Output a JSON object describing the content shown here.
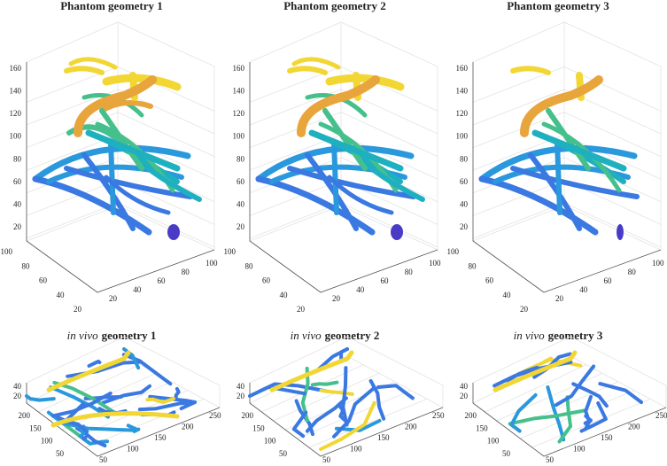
{
  "panels": [
    {
      "title": "Phantom geometry 1",
      "zticks": [
        20,
        40,
        60,
        80,
        100,
        120,
        140,
        160
      ],
      "yticks": [
        100,
        80,
        60,
        40,
        20
      ],
      "xticks": [
        20,
        40,
        60,
        80,
        100
      ]
    },
    {
      "title": "Phantom geometry 2",
      "zticks": [
        20,
        40,
        60,
        80,
        100,
        120,
        140,
        160
      ],
      "yticks": [
        100,
        80,
        60,
        40,
        20
      ],
      "xticks": [
        20,
        40,
        60,
        80,
        100
      ]
    },
    {
      "title": "Phantom geometry 3",
      "zticks": [
        20,
        40,
        60,
        80,
        100,
        120,
        140,
        160
      ],
      "yticks": [
        100,
        80,
        60,
        40,
        20
      ],
      "xticks": [
        20,
        40,
        60,
        80,
        100
      ]
    },
    {
      "title_prefix": "in vivo",
      "title": "geometry 1",
      "zticks": [
        40,
        20
      ],
      "yticks": [
        200,
        150,
        100,
        50
      ],
      "xticks": [
        50,
        100,
        150,
        200,
        250
      ]
    },
    {
      "title_prefix": "in vivo",
      "title": "geometry 2",
      "zticks": [
        40,
        20
      ],
      "yticks": [
        200,
        150,
        100,
        50
      ],
      "xticks": [
        50,
        100,
        150,
        200,
        250
      ]
    },
    {
      "title_prefix": "in vivo",
      "title": "geometry 3",
      "zticks": [
        40,
        20
      ],
      "yticks": [
        200,
        150,
        100,
        50
      ],
      "xticks": [
        50,
        100,
        150,
        200,
        250
      ]
    }
  ]
}
